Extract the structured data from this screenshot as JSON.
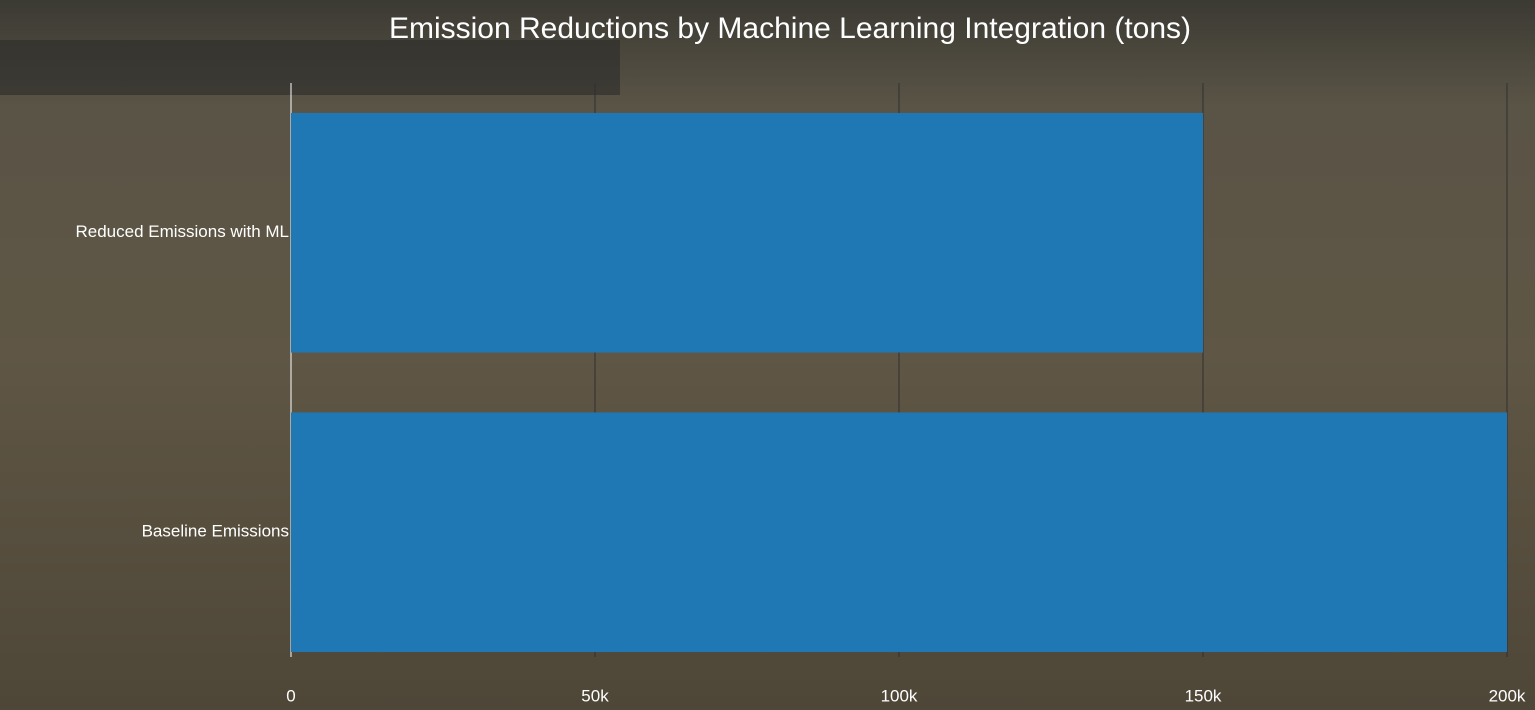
{
  "chart_data": {
    "type": "bar",
    "orientation": "horizontal",
    "title": "Emission Reductions by Machine Learning Integration (tons)",
    "categories": [
      "Reduced Emissions with ML",
      "Baseline Emissions"
    ],
    "values": [
      150000,
      200000
    ],
    "color": "#1f77b4",
    "xlim": [
      0,
      200000
    ],
    "xticks": [
      0,
      {
        "value": 50000,
        "label": "50k"
      },
      {
        "value": 100000,
        "label": "100k"
      },
      {
        "value": 150000,
        "label": "150k"
      },
      {
        "value": 200000,
        "label": "200k"
      }
    ],
    "grid": true
  }
}
